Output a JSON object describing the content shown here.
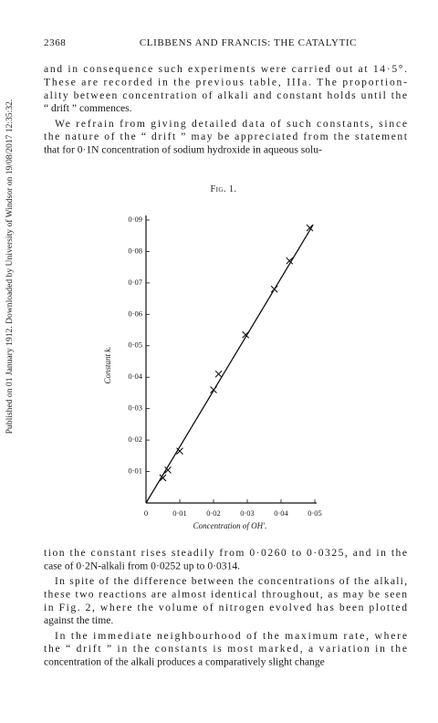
{
  "header": {
    "page": "2368",
    "running_title": "CLIBBENS AND FRANCIS: THE CATALYTIC"
  },
  "watermark": "Published on 01 January 1912. Downloaded by University of Windsor on 19/08/2017 12:35:32.",
  "body_before": [
    [
      "and in consequence such experiments were carried out at 14·5°.",
      "These are recorded in the previous table, IIIa.  The proportion-",
      "ality between concentration of alkali and constant holds until the",
      "“ drift ” commences."
    ],
    [
      "We refrain from giving detailed data of such constants, since",
      "the nature of the “ drift ” may be appreciated from the statement",
      "that for 0·1N concentration of sodium hydroxide in aqueous solu-"
    ]
  ],
  "chart_data": {
    "type": "scatter",
    "title": "Fig. 1.",
    "x_label": "Concentration of OH′.",
    "y_label": "Constant k.",
    "x": [
      0.005,
      0.0065,
      0.01,
      0.02,
      0.0215,
      0.0295,
      0.038,
      0.0425,
      0.0485
    ],
    "values": [
      0.008,
      0.0105,
      0.0165,
      0.036,
      0.041,
      0.0535,
      0.068,
      0.077,
      0.0875
    ],
    "fit": {
      "x": [
        0,
        0.0495
      ],
      "values": [
        0,
        0.0885
      ]
    },
    "xlim": [
      0,
      0.05
    ],
    "ylim": [
      0,
      0.09
    ],
    "xticks": [
      0,
      {
        "value": 0.01,
        "label": "0·01"
      },
      {
        "value": 0.02,
        "label": "0·02"
      },
      {
        "value": 0.03,
        "label": "0·03"
      },
      {
        "value": 0.04,
        "label": "0·04"
      },
      {
        "value": 0.05,
        "label": "0·05"
      }
    ],
    "yticks": [
      {
        "value": 0.01,
        "label": "0·01"
      },
      {
        "value": 0.02,
        "label": "0·02"
      },
      {
        "value": 0.03,
        "label": "0·03"
      },
      {
        "value": 0.04,
        "label": "0·04"
      },
      {
        "value": 0.05,
        "label": "0·05"
      },
      {
        "value": 0.06,
        "label": "0·06"
      },
      {
        "value": 0.07,
        "label": "0·07"
      },
      {
        "value": 0.08,
        "label": "0·08"
      },
      {
        "value": 0.09,
        "label": "0·09"
      }
    ],
    "grid": false
  },
  "body_after": [
    [
      "tion the constant rises steadily from 0·0260 to 0·0325, and in the",
      "case of 0·2N-alkali from 0·0252 up to 0·0314."
    ],
    [
      "In spite of the difference between the concentrations of the alkali,",
      "these two reactions are almost identical throughout, as may be seen",
      "in Fig. 2, where the volume of nitrogen evolved has been plotted",
      "against the time."
    ],
    [
      "In the immediate neighbourhood of the maximum rate, where",
      "the “ drift ” in the constants is most marked, a variation in the",
      "concentration of the alkali produces a comparatively slight change"
    ]
  ]
}
